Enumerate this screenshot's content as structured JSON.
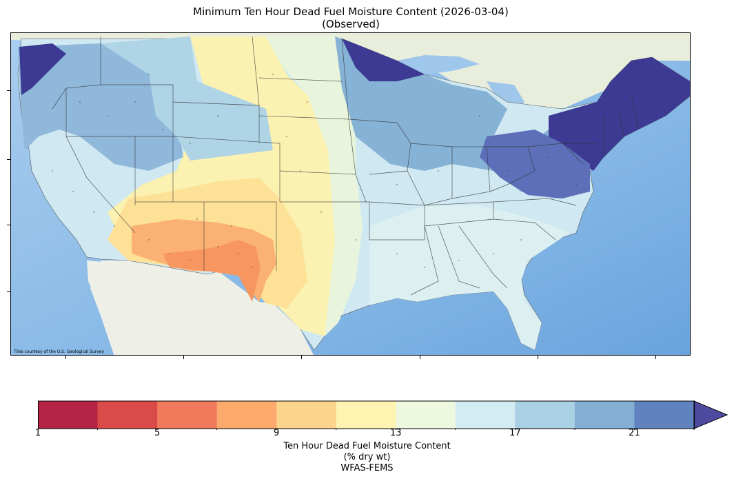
{
  "figure": {
    "title_line1": "Minimum Ten Hour Dead Fuel Moisture Content (2026-03-04)",
    "title_line2": "(Observed)",
    "attribution": "Tiles courtesy of the U.S. Geological Survey"
  },
  "colorbar": {
    "title_line1": "Ten Hour Dead Fuel Moisture Content",
    "title_line2": "(% dry wt)",
    "title_line3": "WFAS-FEMS",
    "tick_labels": [
      "1",
      "5",
      "9",
      "13",
      "17",
      "21"
    ],
    "min": 1,
    "max": 23,
    "extend": "max",
    "colors": [
      "#b52345",
      "#d94a48",
      "#f07a5c",
      "#fbaa6c",
      "#fdd48b",
      "#fef3b1",
      "#eef8df",
      "#d3ecf2",
      "#a9d0e3",
      "#82afd3",
      "#6083bf",
      "#4d4aa0"
    ],
    "bounds": [
      1,
      3,
      5,
      7,
      9,
      11,
      13,
      15,
      17,
      19,
      21,
      23
    ]
  },
  "map": {
    "region": "Contiguous United States",
    "basemap": "USGS topo tiles",
    "colors": {
      "ocean": "#7fb4e2",
      "land_bg": "#eef0e8",
      "state_border": "#333333"
    }
  }
}
